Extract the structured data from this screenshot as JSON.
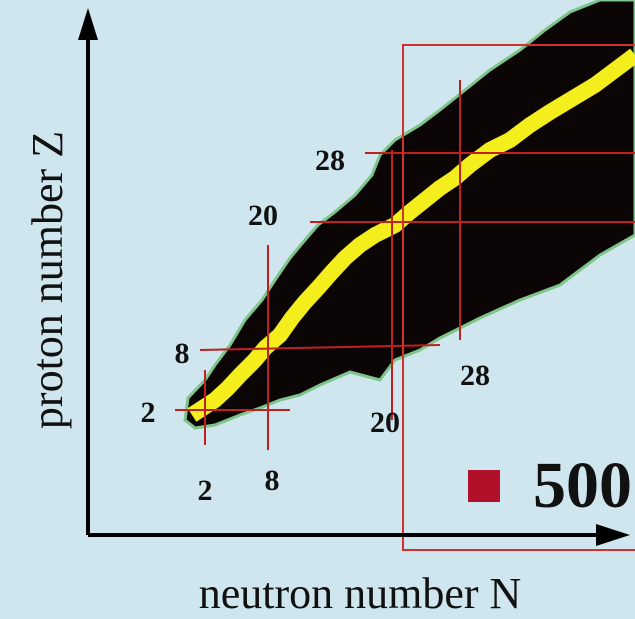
{
  "axes": {
    "y_label": "proton number Z",
    "x_label": "neutron number N"
  },
  "magic_z_labels": [
    "28",
    "20",
    "8",
    "2"
  ],
  "magic_n_labels": [
    "2",
    "8",
    "20",
    "28"
  ],
  "bullet": {
    "text": "500"
  }
}
